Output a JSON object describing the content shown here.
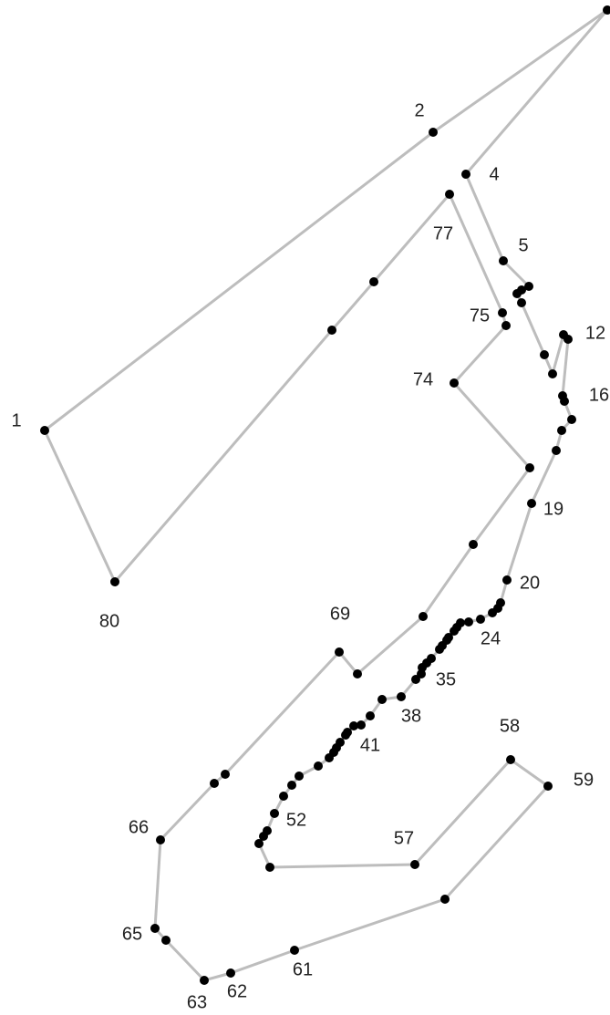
{
  "labels": [
    {
      "n": 1,
      "text": "1"
    },
    {
      "n": 2,
      "text": "2"
    },
    {
      "n": 4,
      "text": "4"
    },
    {
      "n": 5,
      "text": "5"
    },
    {
      "n": 12,
      "text": "12"
    },
    {
      "n": 16,
      "text": "16"
    },
    {
      "n": 19,
      "text": "19"
    },
    {
      "n": 20,
      "text": "20"
    },
    {
      "n": 24,
      "text": "24"
    },
    {
      "n": 35,
      "text": "35"
    },
    {
      "n": 38,
      "text": "38"
    },
    {
      "n": 41,
      "text": "41"
    },
    {
      "n": 52,
      "text": "52"
    },
    {
      "n": 57,
      "text": "57"
    },
    {
      "n": 58,
      "text": "58"
    },
    {
      "n": 59,
      "text": "59"
    },
    {
      "n": 61,
      "text": "61"
    },
    {
      "n": 62,
      "text": "62"
    },
    {
      "n": 63,
      "text": "63"
    },
    {
      "n": 65,
      "text": "65"
    },
    {
      "n": 66,
      "text": "66"
    },
    {
      "n": 69,
      "text": "69"
    },
    {
      "n": 74,
      "text": "74"
    },
    {
      "n": 75,
      "text": "75"
    },
    {
      "n": 77,
      "text": "77"
    },
    {
      "n": 80,
      "text": "80"
    }
  ],
  "colors": {
    "line": "#bdbdbd",
    "dot": "#000000",
    "text": "#222222"
  }
}
